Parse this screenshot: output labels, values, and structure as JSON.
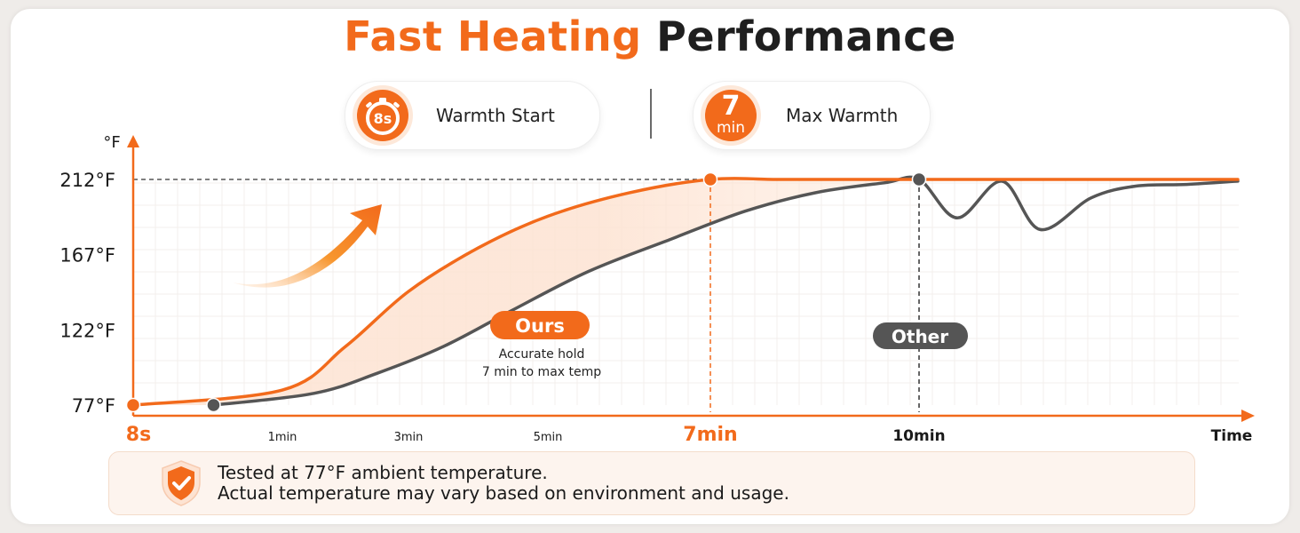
{
  "title": {
    "part1": "Fast Heating",
    "part2": "Performance"
  },
  "badges": [
    {
      "icon_text": "8s",
      "label": "Warmth Start",
      "icon": "stopwatch-icon"
    },
    {
      "icon_big": "7",
      "icon_small": "min",
      "label": "Max Warmth"
    }
  ],
  "note": {
    "line1": "Tested at 77°F ambient temperature.",
    "line2": "Actual temperature may vary based on environment and usage.",
    "icon": "shield-check-icon"
  },
  "colors": {
    "ours": "#f26a1b",
    "other": "#555555",
    "accent_fill": "#fde3d2"
  },
  "chart_data": {
    "type": "line",
    "y_unit_label": "°F",
    "x_axis_label": "Time",
    "y_ticks": [
      {
        "value": 77,
        "label": "77°F"
      },
      {
        "value": 122,
        "label": "122°F"
      },
      {
        "value": 167,
        "label": "167°F"
      },
      {
        "value": 212,
        "label": "212°F"
      }
    ],
    "x_ticks": [
      {
        "value": 0.133,
        "label": "8s",
        "emphasis": "accent"
      },
      {
        "value": 1,
        "label": "1min",
        "emphasis": "none"
      },
      {
        "value": 3,
        "label": "3min",
        "emphasis": "none"
      },
      {
        "value": 5,
        "label": "5min",
        "emphasis": "none"
      },
      {
        "value": 7,
        "label": "7min",
        "emphasis": "accent"
      },
      {
        "value": 10,
        "label": "10min",
        "emphasis": "dark"
      }
    ],
    "ylim": [
      77,
      212
    ],
    "series": [
      {
        "name": "Ours",
        "description_line1": "Accurate hold",
        "description_line2": "7 min to max temp",
        "x": [
          0.133,
          1,
          2,
          3,
          4,
          5,
          6,
          7,
          8,
          9,
          10,
          11,
          12,
          13,
          14,
          15
        ],
        "y": [
          77,
          86,
          112,
          145,
          171,
          190,
          204,
          212,
          212,
          212,
          212,
          212,
          212,
          212,
          212,
          212
        ]
      },
      {
        "name": "Other",
        "x": [
          0.6,
          1.5,
          2.5,
          3.5,
          4.5,
          5.5,
          6.5,
          7.5,
          8.5,
          9.5,
          10,
          10.6,
          11.3,
          11.9,
          12.7,
          13.4,
          14.2,
          15
        ],
        "y": [
          77,
          84,
          96,
          112,
          134,
          157,
          176,
          193,
          204,
          210,
          212,
          189,
          211,
          182,
          201,
          208,
          209,
          211
        ]
      }
    ],
    "markers": [
      {
        "series": "Ours",
        "x": 0.133,
        "y": 77
      },
      {
        "series": "Ours",
        "x": 7,
        "y": 212
      },
      {
        "series": "Other",
        "x": 0.6,
        "y": 77
      },
      {
        "series": "Other",
        "x": 10,
        "y": 212
      }
    ],
    "reference_lines": [
      {
        "type": "horizontal",
        "y": 212,
        "style": "dashed"
      },
      {
        "type": "vertical",
        "x": 7,
        "style": "dashed"
      },
      {
        "type": "vertical",
        "x": 10,
        "style": "dashed"
      }
    ],
    "grid": true,
    "legend": "inline labels"
  }
}
